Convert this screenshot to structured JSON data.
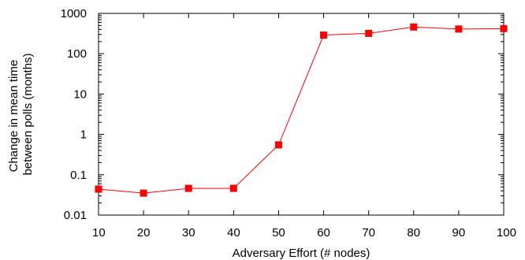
{
  "chart_data": {
    "type": "line",
    "xlabel": "Adversary Effort (# nodes)",
    "ylabel_lines": [
      "Change in mean time",
      "between polls (months)"
    ],
    "x": [
      10,
      20,
      30,
      40,
      50,
      60,
      70,
      80,
      90,
      100
    ],
    "series": [
      {
        "values": [
          0.044,
          0.035,
          0.046,
          0.046,
          0.55,
          290,
          320,
          460,
          410,
          420
        ],
        "color": "#ff0000",
        "marker": "square"
      }
    ],
    "xlim": [
      10,
      100
    ],
    "ylim": [
      0.01,
      1000
    ],
    "yscale": "log",
    "x_ticks": [
      "10",
      "20",
      "30",
      "40",
      "50",
      "60",
      "70",
      "80",
      "90",
      "100"
    ],
    "y_ticks": [
      "0.01",
      "0.1",
      "1",
      "10",
      "100",
      "1000"
    ],
    "grid": false,
    "legend": "none"
  }
}
